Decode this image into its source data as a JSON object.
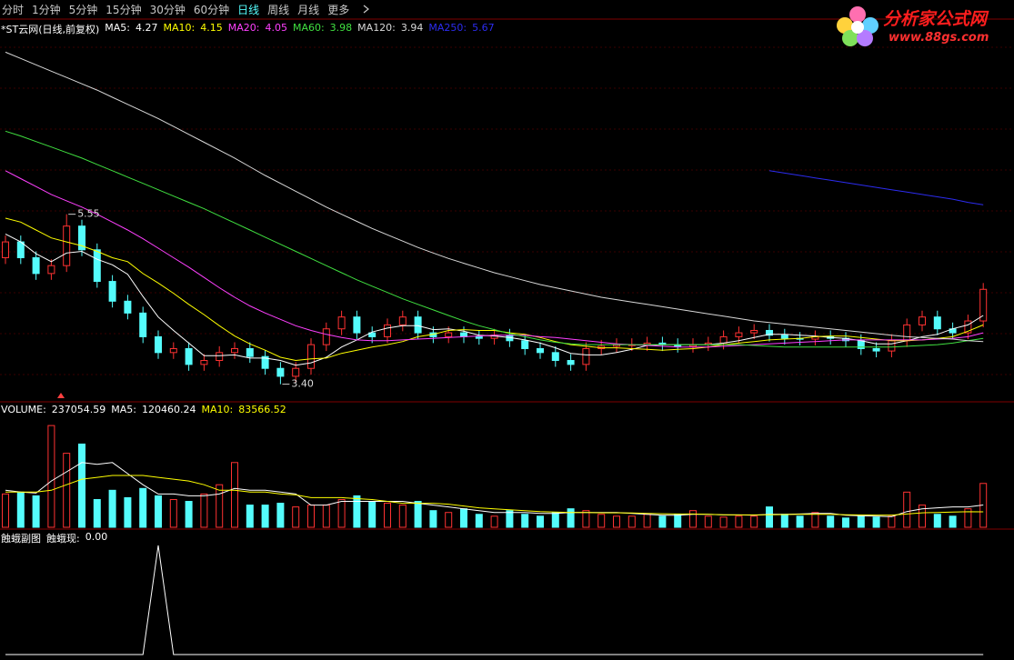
{
  "toolbar": {
    "items": [
      "分时",
      "1分钟",
      "5分钟",
      "15分钟",
      "30分钟",
      "60分钟",
      "日线",
      "周线",
      "月线",
      "更多"
    ],
    "active": 6
  },
  "logo": {
    "title": "分析家公式网",
    "url": "www.88gs.com"
  },
  "chart_data": [
    {
      "type": "candlestick",
      "title": "*ST云网(日线,前复权)",
      "up_color": "#ff3232",
      "down_color": "#54fcfc",
      "ylim": [
        3.2,
        7.8
      ],
      "open": [
        5.0,
        5.2,
        5.0,
        4.8,
        4.9,
        5.4,
        5.1,
        4.7,
        4.45,
        4.3,
        4.0,
        3.8,
        3.85,
        3.65,
        3.7,
        3.8,
        3.85,
        3.75,
        3.6,
        3.5,
        3.6,
        3.9,
        4.1,
        4.25,
        4.05,
        4.0,
        4.15,
        4.25,
        4.05,
        4.0,
        4.05,
        4.0,
        3.98,
        4.02,
        3.95,
        3.85,
        3.8,
        3.7,
        3.65,
        3.85,
        3.88,
        3.9,
        3.9,
        3.92,
        3.9,
        3.88,
        3.9,
        3.92,
        4.0,
        4.05,
        4.08,
        4.02,
        3.98,
        3.97,
        4.0,
        3.98,
        3.95,
        3.85,
        3.82,
        3.95,
        4.15,
        4.25,
        4.1,
        4.05,
        4.2
      ],
      "high": [
        5.28,
        5.28,
        5.08,
        4.98,
        5.55,
        5.48,
        5.18,
        4.78,
        4.53,
        4.38,
        4.08,
        3.93,
        3.93,
        3.78,
        3.88,
        3.93,
        3.93,
        3.83,
        3.68,
        3.68,
        3.98,
        4.18,
        4.33,
        4.33,
        4.13,
        4.23,
        4.33,
        4.33,
        4.13,
        4.13,
        4.13,
        4.08,
        4.1,
        4.1,
        4.03,
        3.93,
        3.88,
        3.78,
        3.93,
        3.96,
        3.98,
        3.98,
        4.0,
        4.0,
        3.98,
        3.98,
        4.0,
        4.08,
        4.13,
        4.16,
        4.16,
        4.1,
        4.06,
        4.08,
        4.08,
        4.06,
        4.03,
        3.93,
        4.03,
        4.23,
        4.33,
        4.33,
        4.18,
        4.28,
        4.68
      ],
      "low": [
        4.92,
        4.92,
        4.72,
        4.72,
        4.82,
        5.02,
        4.62,
        4.37,
        4.22,
        3.92,
        3.72,
        3.72,
        3.57,
        3.57,
        3.62,
        3.72,
        3.67,
        3.52,
        3.4,
        3.42,
        3.52,
        3.82,
        4.02,
        3.97,
        3.92,
        3.92,
        4.07,
        3.97,
        3.92,
        3.92,
        3.92,
        3.9,
        3.9,
        3.87,
        3.77,
        3.72,
        3.62,
        3.57,
        3.57,
        3.77,
        3.8,
        3.82,
        3.82,
        3.82,
        3.8,
        3.8,
        3.82,
        3.84,
        3.92,
        3.97,
        3.94,
        3.9,
        3.89,
        3.89,
        3.9,
        3.87,
        3.77,
        3.74,
        3.74,
        3.87,
        4.07,
        4.02,
        3.97,
        3.97,
        4.12
      ],
      "close": [
        5.2,
        5.0,
        4.8,
        4.9,
        5.4,
        5.1,
        4.7,
        4.45,
        4.3,
        4.0,
        3.8,
        3.85,
        3.65,
        3.7,
        3.8,
        3.85,
        3.75,
        3.6,
        3.5,
        3.6,
        3.9,
        4.1,
        4.25,
        4.05,
        4.0,
        4.15,
        4.25,
        4.05,
        4.0,
        4.05,
        4.0,
        3.98,
        4.02,
        3.95,
        3.85,
        3.8,
        3.7,
        3.65,
        3.85,
        3.88,
        3.9,
        3.9,
        3.92,
        3.9,
        3.88,
        3.9,
        3.92,
        4.0,
        4.05,
        4.08,
        4.02,
        3.98,
        3.97,
        4.0,
        3.98,
        3.95,
        3.85,
        3.82,
        3.95,
        4.15,
        4.25,
        4.1,
        4.05,
        4.2,
        4.6
      ],
      "annotations": [
        {
          "value": 5.55,
          "label": "5.55"
        },
        {
          "value": 3.4,
          "label": "3.40"
        }
      ],
      "series": [
        {
          "name": "MA5:",
          "color": "#ffffff",
          "values": [
            5.3,
            5.2,
            5.05,
            4.95,
            5.06,
            5.08,
            4.98,
            4.91,
            4.79,
            4.51,
            4.25,
            4.08,
            3.92,
            3.76,
            3.76,
            3.77,
            3.73,
            3.73,
            3.7,
            3.64,
            3.67,
            3.74,
            3.87,
            3.96,
            4.06,
            4.11,
            4.14,
            4.14,
            4.09,
            4.1,
            4.07,
            4.02,
            4.01,
            3.99,
            3.96,
            3.92,
            3.86,
            3.79,
            3.77,
            3.77,
            3.8,
            3.84,
            3.89,
            3.9,
            3.9,
            3.9,
            3.9,
            3.92,
            3.95,
            3.99,
            4.03,
            4.03,
            4.02,
            4.01,
            3.99,
            3.98,
            3.95,
            3.91,
            3.91,
            3.95,
            4.0,
            4.03,
            4.1,
            4.15,
            4.27
          ]
        },
        {
          "name": "MA10:",
          "color": "#ffff00",
          "values": [
            5.5,
            5.45,
            5.35,
            5.25,
            5.2,
            5.15,
            5.08,
            5.0,
            4.95,
            4.8,
            4.68,
            4.55,
            4.41,
            4.28,
            4.14,
            4.01,
            3.91,
            3.83,
            3.74,
            3.7,
            3.72,
            3.73,
            3.79,
            3.83,
            3.87,
            3.9,
            3.94,
            4.0,
            4.03,
            4.08,
            4.09,
            4.08,
            4.08,
            4.05,
            4.03,
            3.99,
            3.94,
            3.9,
            3.88,
            3.86,
            3.86,
            3.85,
            3.84,
            3.83,
            3.84,
            3.85,
            3.87,
            3.9,
            3.92,
            3.94,
            3.96,
            3.97,
            3.98,
            4.0,
            4.01,
            4.01,
            3.99,
            3.97,
            3.95,
            3.95,
            3.96,
            3.98,
            4.0,
            4.07,
            4.15
          ]
        },
        {
          "name": "MA20:",
          "color": "#ff40ff",
          "values": [
            6.1,
            6.0,
            5.9,
            5.8,
            5.72,
            5.64,
            5.55,
            5.45,
            5.35,
            5.24,
            5.12,
            5.0,
            4.88,
            4.75,
            4.62,
            4.5,
            4.39,
            4.3,
            4.22,
            4.14,
            4.08,
            4.03,
            3.99,
            3.96,
            3.95,
            3.95,
            3.96,
            3.97,
            3.98,
            3.99,
            4.0,
            4.01,
            4.02,
            4.02,
            4.02,
            4.0,
            3.99,
            3.97,
            3.95,
            3.93,
            3.91,
            3.9,
            3.89,
            3.88,
            3.87,
            3.87,
            3.87,
            3.88,
            3.89,
            3.9,
            3.91,
            3.92,
            3.93,
            3.94,
            3.95,
            3.96,
            3.96,
            3.96,
            3.96,
            3.96,
            3.96,
            3.97,
            3.98,
            4.0,
            4.05
          ]
        },
        {
          "name": "MA60:",
          "color": "#40e040",
          "values": [
            6.6,
            6.54,
            6.47,
            6.4,
            6.33,
            6.26,
            6.18,
            6.1,
            6.02,
            5.94,
            5.86,
            5.78,
            5.7,
            5.62,
            5.53,
            5.44,
            5.35,
            5.26,
            5.17,
            5.08,
            4.99,
            4.9,
            4.81,
            4.72,
            4.64,
            4.56,
            4.48,
            4.41,
            4.34,
            4.27,
            4.2,
            4.14,
            4.09,
            4.04,
            4.0,
            3.96,
            3.93,
            3.91,
            3.9,
            3.9,
            3.9,
            3.9,
            3.9,
            3.9,
            3.9,
            3.9,
            3.9,
            3.9,
            3.9,
            3.89,
            3.88,
            3.87,
            3.87,
            3.87,
            3.87,
            3.87,
            3.87,
            3.87,
            3.87,
            3.88,
            3.89,
            3.9,
            3.92,
            3.95,
            3.98
          ]
        },
        {
          "name": "MA120:",
          "color": "#d8d8d8",
          "values": [
            7.6,
            7.52,
            7.44,
            7.36,
            7.28,
            7.2,
            7.12,
            7.03,
            6.94,
            6.85,
            6.76,
            6.66,
            6.56,
            6.46,
            6.36,
            6.26,
            6.15,
            6.04,
            5.94,
            5.84,
            5.74,
            5.64,
            5.55,
            5.46,
            5.37,
            5.29,
            5.21,
            5.13,
            5.06,
            4.99,
            4.93,
            4.87,
            4.81,
            4.76,
            4.71,
            4.66,
            4.62,
            4.58,
            4.54,
            4.5,
            4.47,
            4.44,
            4.41,
            4.38,
            4.35,
            4.32,
            4.29,
            4.26,
            4.23,
            4.2,
            4.18,
            4.16,
            4.14,
            4.12,
            4.1,
            4.08,
            4.06,
            4.04,
            4.02,
            4.0,
            3.99,
            3.98,
            3.97,
            3.95,
            3.94
          ]
        },
        {
          "name": "MA250:",
          "color": "#2c2cf0",
          "values": [
            null,
            null,
            null,
            null,
            null,
            null,
            null,
            null,
            null,
            null,
            null,
            null,
            null,
            null,
            null,
            null,
            null,
            null,
            null,
            null,
            null,
            null,
            null,
            null,
            null,
            null,
            null,
            null,
            null,
            null,
            null,
            null,
            null,
            null,
            null,
            null,
            null,
            null,
            null,
            null,
            null,
            null,
            null,
            null,
            null,
            null,
            null,
            null,
            null,
            null,
            6.1,
            6.07,
            6.04,
            6.01,
            5.98,
            5.95,
            5.92,
            5.89,
            5.86,
            5.83,
            5.8,
            5.77,
            5.74,
            5.7,
            5.67
          ]
        }
      ]
    },
    {
      "type": "bar",
      "name": "VOLUME:",
      "ylim": [
        0,
        580000
      ],
      "values": [
        180000,
        190000,
        170000,
        550000,
        400000,
        450000,
        150000,
        200000,
        160000,
        210000,
        170000,
        150000,
        140000,
        180000,
        230000,
        350000,
        120000,
        120000,
        130000,
        110000,
        120000,
        120000,
        150000,
        170000,
        140000,
        130000,
        120000,
        140000,
        90000,
        80000,
        100000,
        70000,
        60000,
        90000,
        70000,
        60000,
        80000,
        100000,
        90000,
        70000,
        60000,
        60000,
        70000,
        60000,
        70000,
        90000,
        60000,
        55000,
        60000,
        60000,
        110000,
        70000,
        60000,
        80000,
        60000,
        50000,
        60000,
        55000,
        60000,
        190000,
        120000,
        70000,
        60000,
        100000,
        237054.59
      ],
      "series": [
        {
          "name": "MA5:",
          "color": "#ffffff",
          "values": [
            200000,
            190000,
            185000,
            250000,
            300000,
            350000,
            340000,
            350000,
            290000,
            230000,
            180000,
            180000,
            170000,
            170000,
            180000,
            210000,
            200000,
            200000,
            190000,
            180000,
            120000,
            120000,
            140000,
            140000,
            140000,
            140000,
            140000,
            130000,
            120000,
            110000,
            100000,
            90000,
            80000,
            80000,
            80000,
            75000,
            75000,
            80000,
            80000,
            80000,
            80000,
            75000,
            70000,
            65000,
            65000,
            70000,
            70000,
            67000,
            67000,
            65000,
            70000,
            70000,
            72000,
            75000,
            75000,
            65000,
            62000,
            60000,
            57000,
            85000,
            100000,
            105000,
            110000,
            110000,
            120460.24
          ]
        },
        {
          "name": "MA10:",
          "color": "#ffff00",
          "values": [
            190000,
            190000,
            190000,
            200000,
            230000,
            260000,
            270000,
            280000,
            280000,
            280000,
            270000,
            260000,
            250000,
            230000,
            200000,
            200000,
            190000,
            190000,
            180000,
            175000,
            160000,
            160000,
            160000,
            155000,
            150000,
            140000,
            130000,
            130000,
            130000,
            125000,
            115000,
            105000,
            100000,
            95000,
            90000,
            85000,
            82000,
            80000,
            80000,
            78000,
            78000,
            77000,
            75000,
            73000,
            72000,
            72000,
            70000,
            68000,
            67000,
            67000,
            68000,
            69000,
            70000,
            70000,
            70000,
            68000,
            67000,
            66000,
            66000,
            72000,
            78000,
            80000,
            82000,
            84000,
            83566.52
          ]
        }
      ]
    },
    {
      "type": "line",
      "title": "蝕蛾副图",
      "ylim": [
        0,
        1
      ],
      "series": [
        {
          "name": "蝕蛾现:",
          "color": "#ffffff",
          "values": [
            0,
            0,
            0,
            0,
            0,
            0,
            0,
            0,
            0,
            0,
            1,
            0,
            0,
            0,
            0,
            0,
            0,
            0,
            0,
            0,
            0,
            0,
            0,
            0,
            0,
            0,
            0,
            0,
            0,
            0,
            0,
            0,
            0,
            0,
            0,
            0,
            0,
            0,
            0,
            0,
            0,
            0,
            0,
            0,
            0,
            0,
            0,
            0,
            0,
            0,
            0,
            0,
            0,
            0,
            0,
            0,
            0,
            0,
            0,
            0,
            0,
            0,
            0,
            0,
            0
          ],
          "value_labels": [
            null,
            null,
            null,
            null,
            null,
            null,
            null,
            null,
            null,
            null,
            null,
            null,
            null,
            null,
            null,
            null,
            null,
            null,
            null,
            null,
            null,
            null,
            null,
            null,
            null,
            null,
            null,
            null,
            null,
            null,
            null,
            null,
            null,
            null,
            null,
            null,
            null,
            null,
            null,
            null,
            null,
            null,
            null,
            null,
            null,
            null,
            null,
            null,
            null,
            null,
            null,
            null,
            null,
            null,
            null,
            null,
            null,
            null,
            null,
            null,
            null,
            null,
            null,
            null,
            "0.00"
          ]
        }
      ]
    }
  ]
}
